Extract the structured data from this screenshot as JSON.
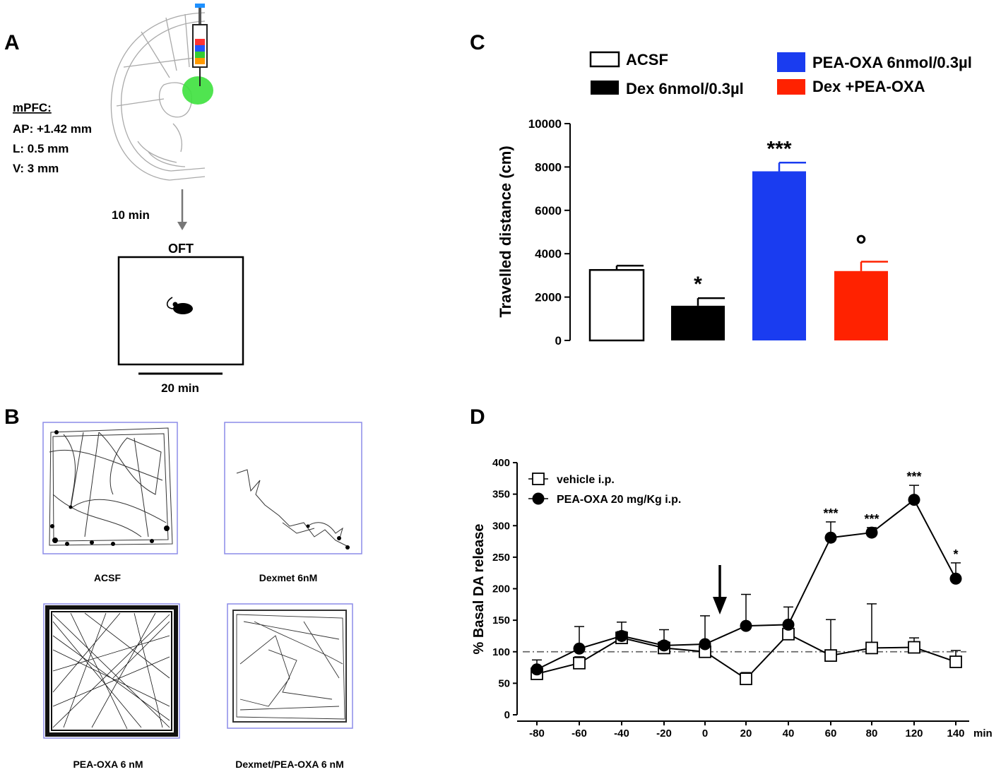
{
  "panel_labels": {
    "a": "A",
    "b": "B",
    "c": "C",
    "d": "D"
  },
  "panel_a": {
    "region_title": "mPFC:",
    "coordinates": [
      "AP: +1.42 mm",
      "L: 0.5 mm",
      "V: 3 mm"
    ],
    "delay": "10 min",
    "test_name": "OFT",
    "duration": "20 min"
  },
  "panel_b": {
    "captions": [
      "ACSF",
      "Dexmet 6nM",
      "PEA-OXA 6 nM",
      "Dexmet/PEA-OXA 6 nM"
    ]
  },
  "chart_data": [
    {
      "type": "bar",
      "panel": "C",
      "categories": [
        "ACSF",
        "Dex 6nmol/0.3µl",
        "PEA-OXA 6nmol/0.3µl",
        "Dex +PEA-OXA"
      ],
      "values": [
        3250,
        1600,
        7800,
        3200
      ],
      "errors": [
        200,
        350,
        400,
        430
      ],
      "colors": [
        "#ffffff",
        "#000000",
        "#1a3cf0",
        "#ff2200"
      ],
      "significance": [
        "",
        "*",
        "***",
        "°"
      ],
      "ylabel": "Travelled distance (cm)",
      "ylim": [
        0,
        10000
      ],
      "yticks": [
        0,
        2000,
        4000,
        6000,
        8000,
        10000
      ],
      "legend": [
        "ACSF",
        "Dex 6nmol/0.3µl",
        "PEA-OXA 6nmol/0.3µl",
        "Dex +PEA-OXA"
      ]
    },
    {
      "type": "line",
      "panel": "D",
      "x": [
        "-80",
        "-60",
        "-40",
        "-20",
        "0",
        "20",
        "40",
        "60",
        "80",
        "120",
        "140"
      ],
      "xunit": "min",
      "series": [
        {
          "name": "vehicle i.p.",
          "marker": "open-square",
          "values": [
            65,
            82,
            122,
            106,
            100,
            57,
            128,
            94,
            106,
            107,
            84
          ],
          "errors": [
            10,
            10,
            10,
            10,
            10,
            10,
            10,
            57,
            70,
            15,
            18
          ]
        },
        {
          "name": "PEA-OXA 20 mg/Kg i.p.",
          "marker": "filled-circle",
          "values": [
            72,
            105,
            125,
            110,
            112,
            141,
            143,
            281,
            289,
            341,
            216
          ],
          "errors": [
            15,
            35,
            22,
            25,
            45,
            50,
            28,
            25,
            8,
            23,
            25
          ]
        }
      ],
      "significance": [
        "",
        "",
        "",
        "",
        "",
        "",
        "",
        "***",
        "***",
        "***",
        "*"
      ],
      "baseline": 100,
      "arrow_at": "10",
      "ylabel": "% Basal DA release",
      "ylim": [
        0,
        400
      ],
      "yticks": [
        0,
        50,
        100,
        150,
        200,
        250,
        300,
        350,
        400
      ]
    }
  ]
}
